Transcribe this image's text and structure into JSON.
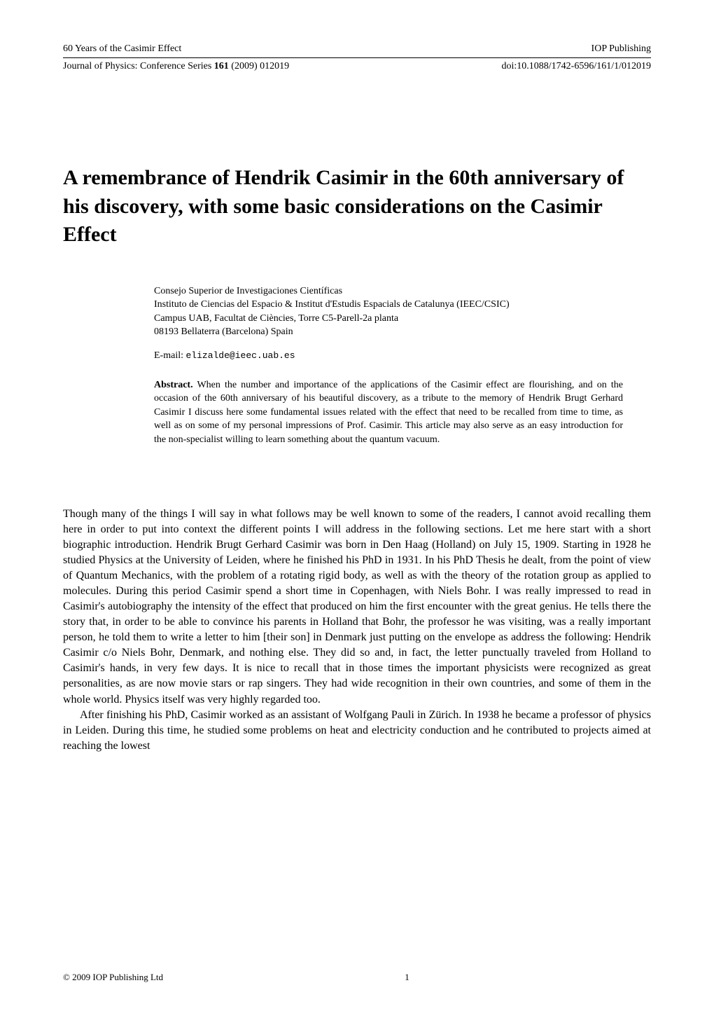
{
  "header": {
    "line1_left": "60 Years of the Casimir Effect",
    "line1_right": "IOP Publishing",
    "line2_left_prefix": "Journal of Physics: Conference Series ",
    "line2_left_vol": "161",
    "line2_left_suffix": " (2009) 012019",
    "line2_right": "doi:10.1088/1742-6596/161/1/012019"
  },
  "title": "A remembrance of Hendrik Casimir in the 60th anniversary of his discovery, with some basic considerations on the Casimir Effect",
  "affiliation": {
    "line1": "Consejo Superior de Investigaciones Científicas",
    "line2": "Instituto de Ciencias del Espacio & Institut d'Estudis Espacials de Catalunya (IEEC/CSIC)",
    "line3": "Campus UAB, Facultat de Ciències, Torre C5-Parell-2a planta",
    "line4": "08193 Bellaterra (Barcelona) Spain",
    "email_label": "E-mail: ",
    "email": "elizalde@ieec.uab.es"
  },
  "abstract": {
    "label": "Abstract.",
    "text": "  When the number and importance of the applications of the Casimir effect are flourishing, and on the occasion of the 60th anniversary of his beautiful discovery, as a tribute to the memory of Hendrik Brugt Gerhard Casimir I discuss here some fundamental issues related with the effect that need to be recalled from time to time, as well as on some of my personal impressions of Prof. Casimir. This article may also serve as an easy introduction for the non-specialist willing to learn something about the quantum vacuum."
  },
  "body": {
    "p1": "Though many of the things I will say in what follows may be well known to some of the readers, I cannot avoid recalling them here in order to put into context the different points I will address in the following sections. Let me here start with a short biographic introduction. Hendrik Brugt Gerhard Casimir was born in Den Haag (Holland) on July 15, 1909. Starting in 1928 he studied Physics at the University of Leiden, where he finished his PhD in 1931. In his PhD Thesis he dealt, from the point of view of Quantum Mechanics, with the problem of a rotating rigid body, as well as with the theory of the rotation group as applied to molecules. During this period Casimir spend a short time in Copenhagen, with Niels Bohr. I was really impressed to read in Casimir's autobiography the intensity of the effect that produced on him the first encounter with the great genius. He tells there the story that, in order to be able to convince his parents in Holland that Bohr, the professor he was visiting, was a really important person, he told them to write a letter to him [their son] in Denmark just putting on the envelope as address the following: Hendrik Casimir c/o Niels Bohr, Denmark, and nothing else. They did so and, in fact, the letter punctually traveled from Holland to Casimir's hands, in very few days. It is nice to recall that in those times the important physicists were recognized as great personalities, as are now movie stars or rap singers. They had wide recognition in their own countries, and some of them in the whole world. Physics itself was very highly regarded too.",
    "p2": "After finishing his PhD, Casimir worked as an assistant of Wolfgang Pauli in Zürich. In 1938 he became a professor of physics in Leiden. During this time, he studied some problems on heat and electricity conduction and he contributed to projects aimed at reaching the lowest"
  },
  "footer": {
    "copyright": "© 2009 IOP Publishing Ltd",
    "page": "1"
  }
}
